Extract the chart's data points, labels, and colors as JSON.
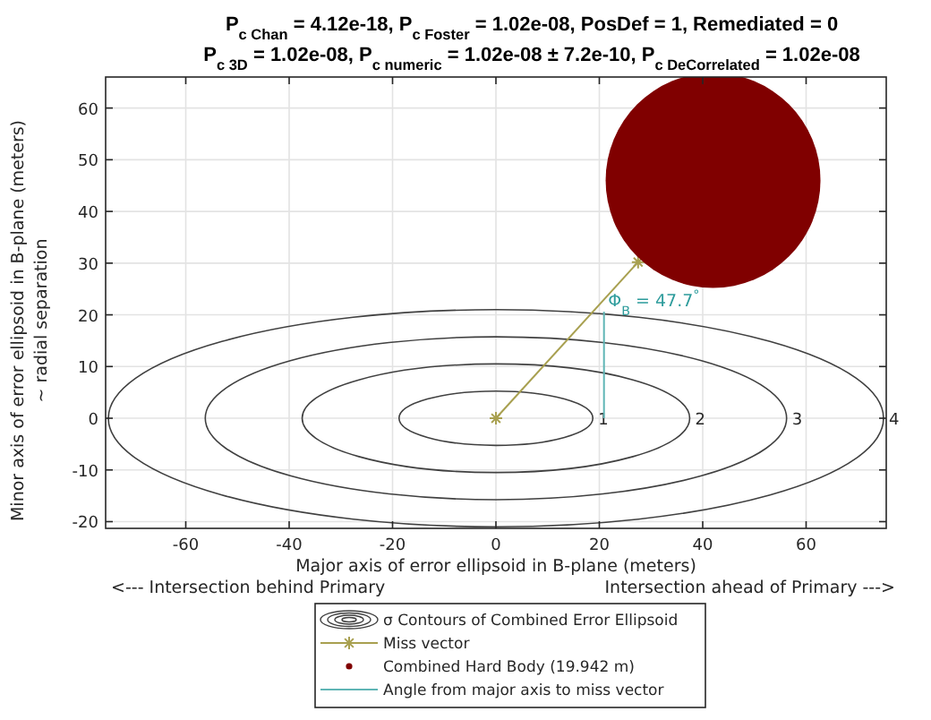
{
  "chart_data": {
    "type": "line",
    "title": "P$_{c Chan}$ = 4.12e-18,  P$_{c Foster}$ = 1.02e-08,  PosDef = 1,  Remediated = 0",
    "subtitle": "P$_{c 3D}$ = 1.02e-08,  P$_{c numeric}$ = 1.02e-08 ± 7.2e-10,  P$_{c DeCorrelated}$ = 1.02e-08",
    "xlabel": "Major axis of error ellipsoid in B-plane (meters)",
    "ylabel": "Minor axis of error ellipsoid in B-plane (meters)",
    "annotations": [
      "<--- Intersection behind Primary",
      "Intersection ahead of Primary --->",
      "~ radial separation",
      "σ Contours of Combined Error Ellipsoid",
      "1",
      "2",
      "3",
      "4",
      {
        "text": "Φ$_{B}$ = 47.7$^{°}$",
        "x": 21,
        "y": 23
      }
    ],
    "xlim": [
      -75.5,
      75.5
    ],
    "ylim": [
      -21.3,
      66
    ],
    "xticks": [
      -60,
      -40,
      -20,
      0,
      20,
      40,
      60
    ],
    "yticks": [
      -20,
      -10,
      0,
      10,
      20,
      30,
      40,
      50,
      60
    ],
    "grid": true,
    "legend": "bottom",
    "series": [
      {
        "name": "Miss vector",
        "color": "#a8a050",
        "marker": "cross",
        "x": [
          0,
          27.5
        ],
        "values": [
          0,
          30.2
        ]
      },
      {
        "name": "Combined Hard Body (19.942 m)",
        "type": "bubble",
        "color": "#800000",
        "x": [
          42
        ],
        "values": [
          46
        ],
        "sizes": [
          1
        ]
      },
      {
        "name": "Angle from major axis to miss vector",
        "color": "#5fb5b5",
        "x": [
          20.9,
          20.9
        ],
        "values": [
          0,
          20.6
        ]
      }
    ]
  }
}
